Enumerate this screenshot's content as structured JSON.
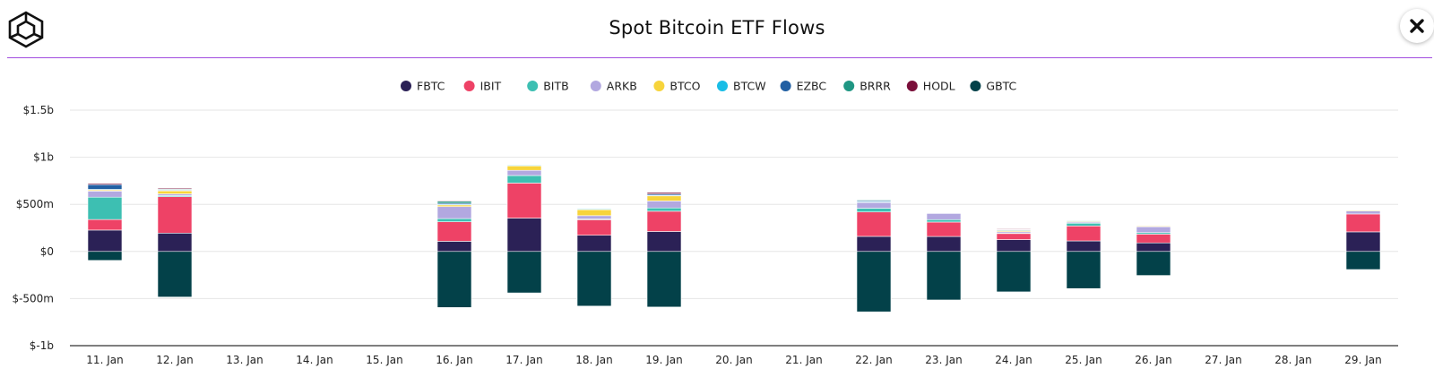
{
  "header": {
    "title": "Spot Bitcoin ETF Flows"
  },
  "colors": {
    "divider": "#a24de0"
  },
  "icons": {
    "logo": "cube-logo-icon",
    "close": "close-icon"
  },
  "chart_data": {
    "type": "bar",
    "stacked": true,
    "title": "Spot Bitcoin ETF Flows",
    "xlabel": "",
    "ylabel": "",
    "ylim": [
      -1000,
      1500
    ],
    "y_ticks": [
      {
        "value": 1500,
        "label": "$1.5b"
      },
      {
        "value": 1000,
        "label": "$1b"
      },
      {
        "value": 500,
        "label": "$500m"
      },
      {
        "value": 0,
        "label": "$0"
      },
      {
        "value": -500,
        "label": "$-500m"
      },
      {
        "value": -1000,
        "label": "$-1b"
      }
    ],
    "grid": true,
    "legend_position": "top-center",
    "categories": [
      "11. Jan",
      "12. Jan",
      "13. Jan",
      "14. Jan",
      "15. Jan",
      "16. Jan",
      "17. Jan",
      "18. Jan",
      "19. Jan",
      "20. Jan",
      "21. Jan",
      "22. Jan",
      "23. Jan",
      "24. Jan",
      "25. Jan",
      "26. Jan",
      "27. Jan",
      "28. Jan",
      "29. Jan"
    ],
    "series": [
      {
        "name": "FBTC",
        "color": "#2b2156",
        "values": [
          227,
          195,
          0,
          0,
          0,
          108,
          354,
          172,
          212,
          0,
          0,
          160,
          159,
          126,
          112,
          91,
          0,
          0,
          208
        ]
      },
      {
        "name": "IBIT",
        "color": "#ee4266",
        "values": [
          112,
          386,
          0,
          0,
          0,
          207,
          372,
          165,
          215,
          0,
          0,
          259,
          153,
          66,
          159,
          93,
          0,
          0,
          190
        ]
      },
      {
        "name": "BITB",
        "color": "#3dbfb2",
        "values": [
          237,
          12,
          0,
          0,
          0,
          34,
          80,
          7,
          35,
          0,
          0,
          40,
          26,
          5,
          29,
          16,
          0,
          0,
          0
        ]
      },
      {
        "name": "ARKB",
        "color": "#b2a8e0",
        "values": [
          65,
          18,
          0,
          0,
          0,
          127,
          55,
          36,
          74,
          0,
          0,
          63,
          65,
          14,
          17,
          68,
          0,
          0,
          36
        ]
      },
      {
        "name": "BTCO",
        "color": "#f7d43b",
        "values": [
          17,
          35,
          0,
          0,
          0,
          22,
          53,
          68,
          56,
          0,
          0,
          5,
          0,
          12,
          1,
          1,
          0,
          0,
          3
        ]
      },
      {
        "name": "BTCW",
        "color": "#19bde6",
        "values": [
          1,
          4,
          0,
          0,
          0,
          2,
          1,
          2,
          5,
          0,
          0,
          1,
          0,
          6,
          0,
          0,
          0,
          0,
          0
        ]
      },
      {
        "name": "EZBC",
        "color": "#2260a3",
        "values": [
          50,
          6,
          0,
          0,
          0,
          12,
          0,
          0,
          14,
          0,
          0,
          16,
          0,
          7,
          0,
          0,
          0,
          0,
          0
        ]
      },
      {
        "name": "BRRR",
        "color": "#1f9683",
        "values": [
          0,
          6,
          0,
          0,
          0,
          23,
          0,
          0,
          0,
          0,
          0,
          1,
          0,
          0,
          7,
          0,
          0,
          0,
          0
        ]
      },
      {
        "name": "HODL",
        "color": "#7a0f3a",
        "values": [
          12,
          10,
          0,
          0,
          0,
          4,
          0,
          0,
          15,
          0,
          0,
          0,
          0,
          4,
          0,
          0,
          0,
          0,
          0
        ]
      },
      {
        "name": "GBTC",
        "color": "#034149",
        "values": [
          -95,
          -484,
          0,
          0,
          0,
          -595,
          -440,
          -580,
          -590,
          0,
          0,
          -641,
          -515,
          -429,
          -394,
          -255,
          0,
          0,
          -192
        ]
      }
    ]
  }
}
